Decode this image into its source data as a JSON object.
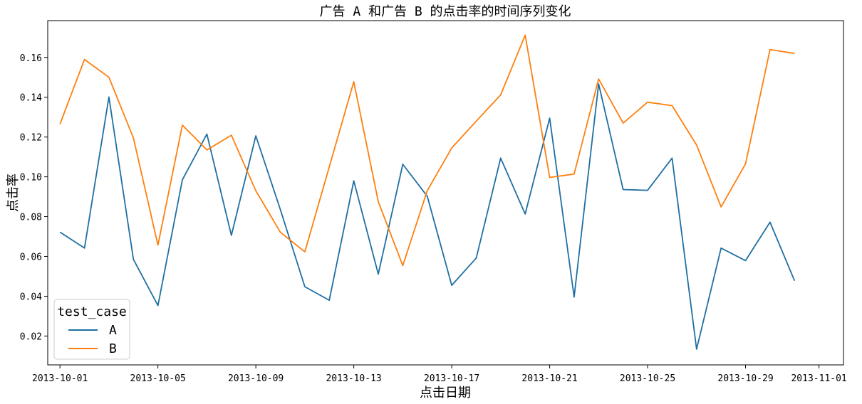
{
  "chart_data": {
    "type": "line",
    "title": "广告 A 和广告 B 的点击率的时间序列变化",
    "xlabel": "点击日期",
    "ylabel": "点击率",
    "x": [
      "2013-10-01",
      "2013-10-02",
      "2013-10-03",
      "2013-10-04",
      "2013-10-05",
      "2013-10-06",
      "2013-10-07",
      "2013-10-08",
      "2013-10-09",
      "2013-10-10",
      "2013-10-11",
      "2013-10-12",
      "2013-10-13",
      "2013-10-14",
      "2013-10-15",
      "2013-10-16",
      "2013-10-17",
      "2013-10-18",
      "2013-10-19",
      "2013-10-20",
      "2013-10-21",
      "2013-10-22",
      "2013-10-23",
      "2013-10-24",
      "2013-10-25",
      "2013-10-26",
      "2013-10-27",
      "2013-10-28",
      "2013-10-29",
      "2013-10-30",
      "2013-10-31"
    ],
    "series": [
      {
        "name": "A",
        "color": "#1f6fa3",
        "values": [
          0.0722,
          0.0642,
          0.1401,
          0.0585,
          0.0353,
          0.0985,
          0.1215,
          0.0706,
          0.1206,
          0.0836,
          0.0448,
          0.038,
          0.098,
          0.0511,
          0.1063,
          0.0903,
          0.0455,
          0.0592,
          0.1094,
          0.0813,
          0.1295,
          0.0396,
          0.1467,
          0.0936,
          0.0932,
          0.1094,
          0.0134,
          0.0642,
          0.0579,
          0.0772,
          0.0478
        ]
      },
      {
        "name": "B",
        "color": "#ff7f0e",
        "values": [
          0.1265,
          0.159,
          0.15,
          0.1195,
          0.0657,
          0.126,
          0.1135,
          0.1209,
          0.093,
          0.0722,
          0.0623,
          0.105,
          0.1478,
          0.0875,
          0.0554,
          0.093,
          0.1145,
          0.128,
          0.1412,
          0.1712,
          0.0997,
          0.1014,
          0.1492,
          0.127,
          0.1375,
          0.1358,
          0.116,
          0.0849,
          0.1065,
          0.164,
          0.162
        ]
      }
    ],
    "xlim": [
      "2013-09-30T12:00",
      "2013-11-02"
    ],
    "x_ticks": [
      "2013-10-01",
      "2013-10-05",
      "2013-10-09",
      "2013-10-13",
      "2013-10-17",
      "2013-10-21",
      "2013-10-25",
      "2013-10-29",
      "2013-11-01"
    ],
    "ylim": [
      0.0055,
      0.1785
    ],
    "y_ticks": [
      0.02,
      0.04,
      0.06,
      0.08,
      0.1,
      0.12,
      0.14,
      0.16
    ],
    "y_tick_labels": [
      "0.02",
      "0.04",
      "0.06",
      "0.08",
      "0.10",
      "0.12",
      "0.14",
      "0.16"
    ],
    "grid": false,
    "legend": {
      "title": "test_case",
      "placement": "lower-left",
      "entries": [
        "A",
        "B"
      ]
    }
  }
}
